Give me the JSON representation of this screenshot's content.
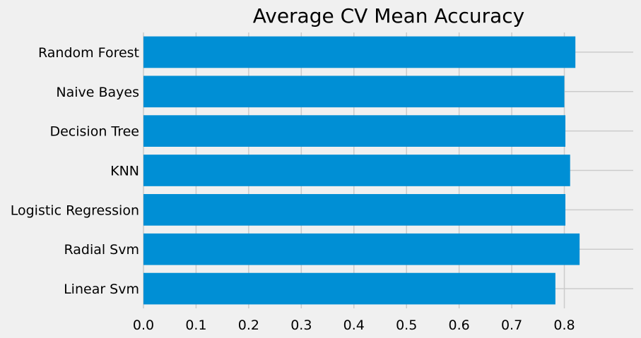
{
  "chart_data": {
    "type": "bar",
    "orientation": "horizontal",
    "title": "Average CV Mean Accuracy",
    "xlabel": "",
    "ylabel": "",
    "categories": [
      "Linear Svm",
      "Radial Svm",
      "Logistic Regression",
      "KNN",
      "Decision Tree",
      "Naive Bayes",
      "Random Forest"
    ],
    "values": [
      0.783,
      0.829,
      0.802,
      0.811,
      0.802,
      0.8,
      0.821
    ],
    "xlim": [
      0,
      0.86
    ],
    "xticks": [
      "0.0",
      "0.1",
      "0.2",
      "0.3",
      "0.4",
      "0.5",
      "0.6",
      "0.7",
      "0.8"
    ],
    "grid": true,
    "bar_color": "#008fd5",
    "background_color": "#f0f0f0",
    "grid_color": "#cbcbcb"
  }
}
